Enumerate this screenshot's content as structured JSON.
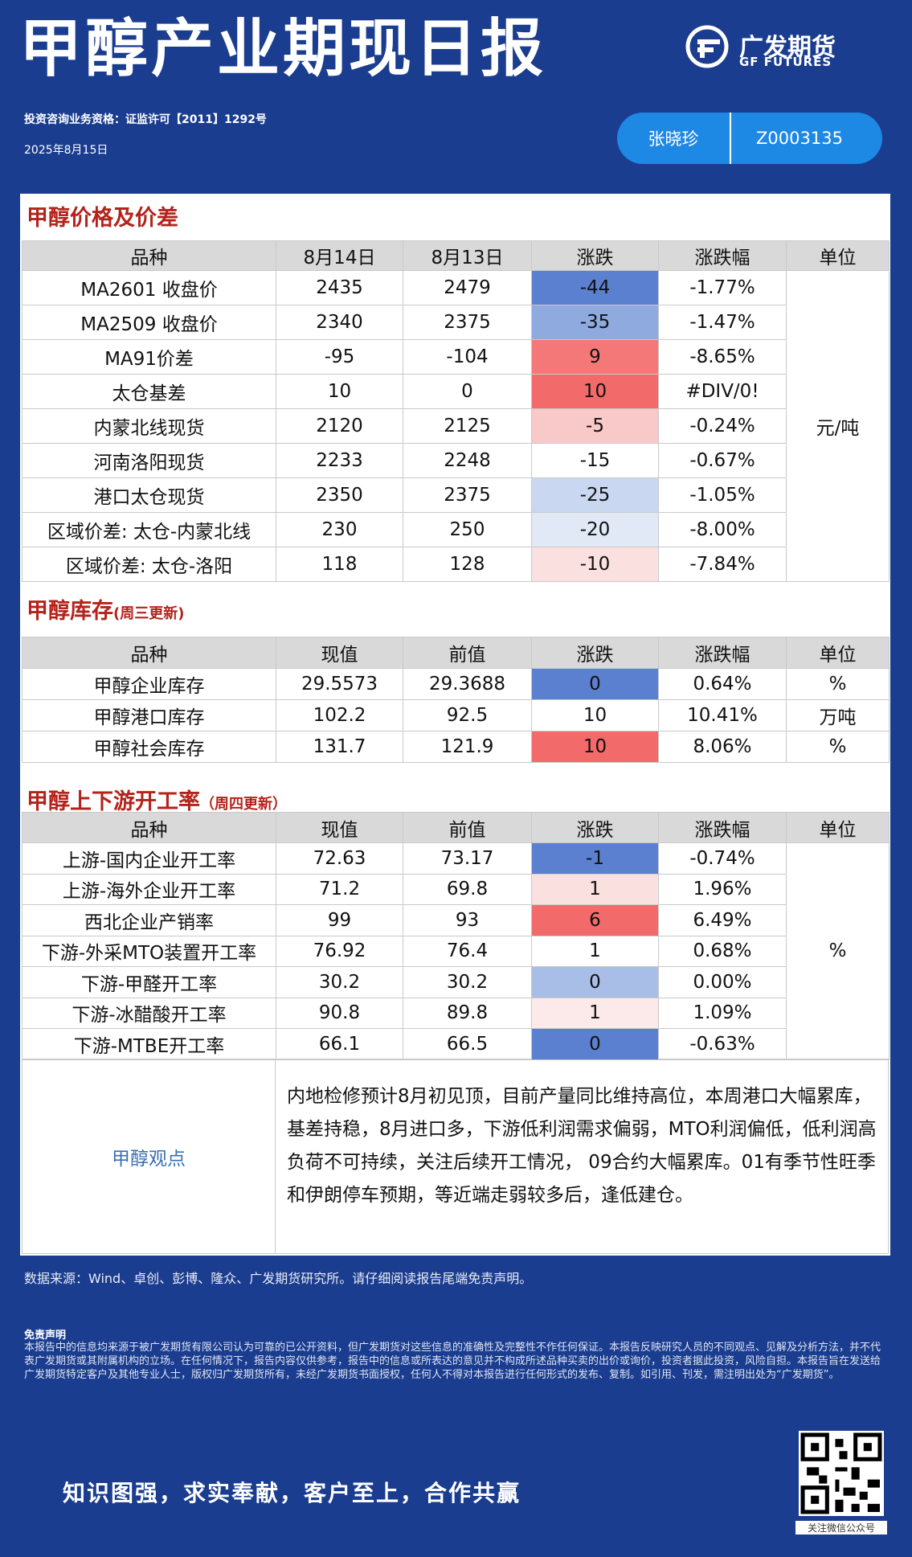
{
  "header": {
    "title": "甲醇产业期现日报",
    "logo_cn": "广发期货",
    "logo_en": "GF FUTURES",
    "license": "投资咨询业务资格：证监许可【2011】1292号",
    "date": "2025年8月15日",
    "analyst": "张晓珍",
    "analyst_id": "Z0003135"
  },
  "sections": [
    {
      "title": "甲醇价格及价差",
      "header": [
        "品种",
        "8月14日",
        "8月13日",
        "涨跌",
        "涨跌幅",
        "单位"
      ],
      "unit": "元/吨",
      "rows": [
        {
          "cells": [
            "MA2601 收盘价",
            "2435",
            "2479",
            "-44",
            "-1.77%"
          ],
          "fill": "#5b80cf"
        },
        {
          "cells": [
            "MA2509 收盘价",
            "2340",
            "2375",
            "-35",
            "-1.47%"
          ],
          "fill": "#8eaade"
        },
        {
          "cells": [
            "MA91价差",
            "-95",
            "-104",
            "9",
            "-8.65%"
          ],
          "fill": "#f47878"
        },
        {
          "cells": [
            "太仓基差",
            "10",
            "0",
            "10",
            "#DIV/0!"
          ],
          "fill": "#f26a6a"
        },
        {
          "cells": [
            "内蒙北线现货",
            "2120",
            "2125",
            "-5",
            "-0.24%"
          ],
          "fill": "#f9c8c8"
        },
        {
          "cells": [
            "河南洛阳现货",
            "2233",
            "2248",
            "-15",
            "-0.67%"
          ],
          "fill": "#ffffff"
        },
        {
          "cells": [
            "港口太仓现货",
            "2350",
            "2375",
            "-25",
            "-1.05%"
          ],
          "fill": "#c9d7f0"
        },
        {
          "cells": [
            "区域价差: 太仓-内蒙北线",
            "230",
            "250",
            "-20",
            "-8.00%"
          ],
          "fill": "#e2e9f6"
        },
        {
          "cells": [
            "区域价差: 太仓-洛阳",
            "118",
            "128",
            "-10",
            "-7.84%"
          ],
          "fill": "#fbe0e0"
        }
      ]
    },
    {
      "title": "甲醇库存",
      "note": "(周三更新)",
      "header": [
        "品种",
        "现值",
        "前值",
        "涨跌",
        "涨跌幅",
        "单位"
      ],
      "rows": [
        {
          "cells": [
            "甲醇企业库存",
            "29.5573",
            "29.3688",
            "0",
            "0.64%"
          ],
          "unit": "%",
          "fill": "#5b80cf"
        },
        {
          "cells": [
            "甲醇港口库存",
            "102.2",
            "92.5",
            "10",
            "10.41%"
          ],
          "unit": "万吨",
          "fill": "#ffffff"
        },
        {
          "cells": [
            "甲醇社会库存",
            "131.7",
            "121.9",
            "10",
            "8.06%"
          ],
          "unit": "%",
          "fill": "#f26a6a"
        }
      ]
    },
    {
      "title": "甲醇上下游开工率",
      "note": "（周四更新）",
      "header": [
        "品种",
        "现值",
        "前值",
        "涨跌",
        "涨跌幅",
        "单位"
      ],
      "unit": "%",
      "rows": [
        {
          "cells": [
            "上游-国内企业开工率",
            "72.63",
            "73.17",
            "-1",
            "-0.74%"
          ],
          "fill": "#5b80cf"
        },
        {
          "cells": [
            "上游-海外企业开工率",
            "71.2",
            "69.8",
            "1",
            "1.96%"
          ],
          "fill": "#fbe0e0"
        },
        {
          "cells": [
            "西北企业产销率",
            "99",
            "93",
            "6",
            "6.49%"
          ],
          "fill": "#f26a6a"
        },
        {
          "cells": [
            "下游-外采MTO装置开工率",
            "76.92",
            "76.4",
            "1",
            "0.68%"
          ],
          "fill": "#ffffff"
        },
        {
          "cells": [
            "下游-甲醛开工率",
            "30.2",
            "30.2",
            "0",
            "0.00%"
          ],
          "fill": "#a9bee7"
        },
        {
          "cells": [
            "下游-冰醋酸开工率",
            "90.8",
            "89.8",
            "1",
            "1.09%"
          ],
          "fill": "#fce9e9"
        },
        {
          "cells": [
            "下游-MTBE开工率",
            "66.1",
            "66.5",
            "0",
            "-0.63%"
          ],
          "fill": "#5b80cf"
        }
      ]
    }
  ],
  "opinion": {
    "label": "甲醇观点",
    "text": "内地检修预计8月初见顶，目前产量同比维持高位，本周港口大幅累库，基差持稳，8月进口多，下游低利润需求偏弱，MTO利润偏低，低利润高负荷不可持续，关注后续开工情况， 09合约大幅累库。01有季节性旺季和伊朗停车预期，等近端走弱较多后，逢低建仓。"
  },
  "footer": {
    "source": "数据来源：Wind、卓创、彭博、隆众、广发期货研究所。请仔细阅读报告尾端免责声明。",
    "disclaimer_title": "免责声明",
    "disclaimer": "本报告中的信息均来源于被广发期货有限公司认为可靠的已公开资料，但广发期货对这些信息的准确性及完整性不作任何保证。本报告反映研究人员的不同观点、见解及分析方法，并不代表广发期货或其附属机构的立场。在任何情况下，报告内容仅供参考，报告中的信息或所表达的意见并不构成所述品种买卖的出价或询价，投资者据此投资，风险自担。本报告旨在发送给广发期货特定客户及其他专业人士，版权归广发期货所有，未经广发期货书面授权，任何人不得对本报告进行任何形式的发布、复制。如引用、刊发，需注明出处为“广发期货”。",
    "slogan": "知识图强，求实奉献，客户至上，合作共赢",
    "qr_caption": "关注微信公众号"
  }
}
